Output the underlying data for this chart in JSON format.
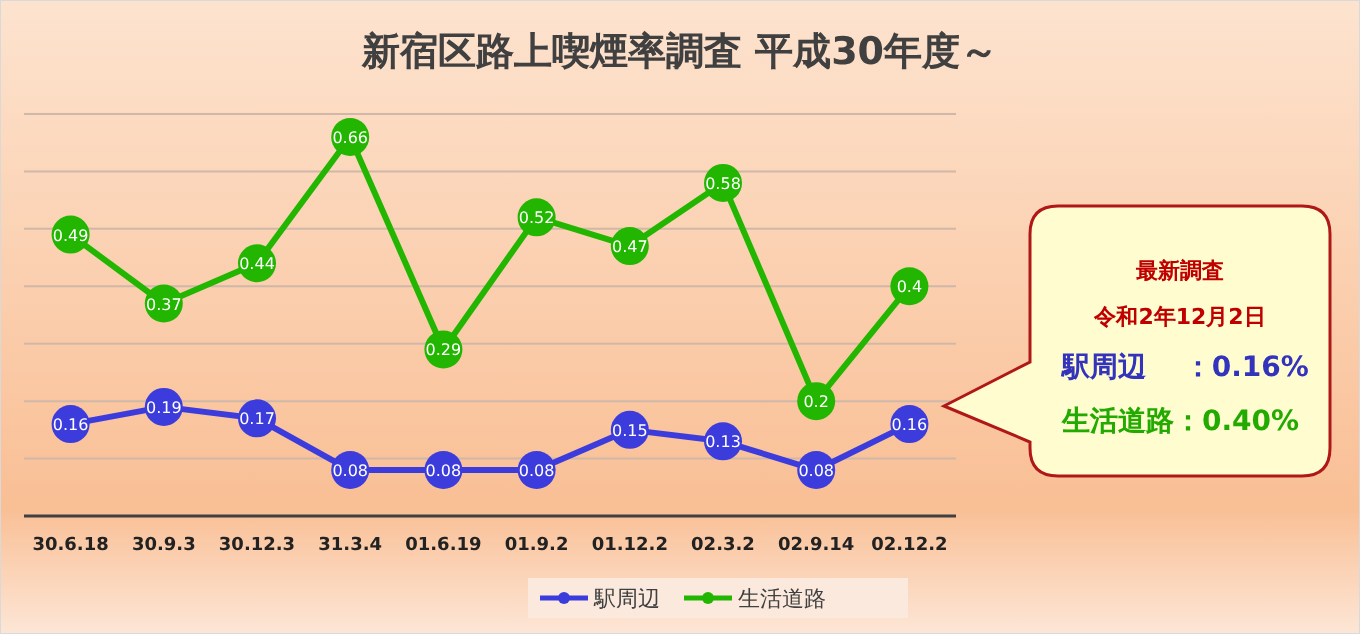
{
  "chart_data": {
    "type": "line",
    "title": "新宿区路上喫煙率調査  平成30年度～",
    "categories": [
      "30.6.18",
      "30.9.3",
      "30.12.3",
      "31.3.4",
      "01.6.19",
      "01.9.2",
      "01.12.2",
      "02.3.2",
      "02.9.14",
      "02.12.2"
    ],
    "series": [
      {
        "name": "駅周辺",
        "color": "#3c3cdc",
        "values": [
          0.16,
          0.19,
          0.17,
          0.08,
          0.08,
          0.08,
          0.15,
          0.13,
          0.08,
          0.16
        ]
      },
      {
        "name": "生活道路",
        "color": "#22b600",
        "values": [
          0.49,
          0.37,
          0.44,
          0.66,
          0.29,
          0.52,
          0.47,
          0.58,
          0.2,
          0.4
        ]
      }
    ],
    "ylim": [
      0,
      0.7
    ],
    "yticks": [
      {
        "value": 0.1,
        "label": null
      },
      {
        "value": 0.2,
        "label": null
      },
      {
        "value": 0.3,
        "label": null
      },
      {
        "value": 0.4,
        "label": null
      },
      {
        "value": 0.5,
        "label": null
      },
      {
        "value": 0.6,
        "label": null
      },
      {
        "value": 0.7,
        "label": null
      }
    ],
    "grid": "y",
    "tick_labels": "x",
    "marker": "circle",
    "line_style": "solid",
    "data_labels": true,
    "legend": "bottom",
    "annotations": [
      "最新調査",
      "令和2年12月2日",
      "駅周辺　 ：0.16%",
      "生活道路：0.40%"
    ]
  }
}
